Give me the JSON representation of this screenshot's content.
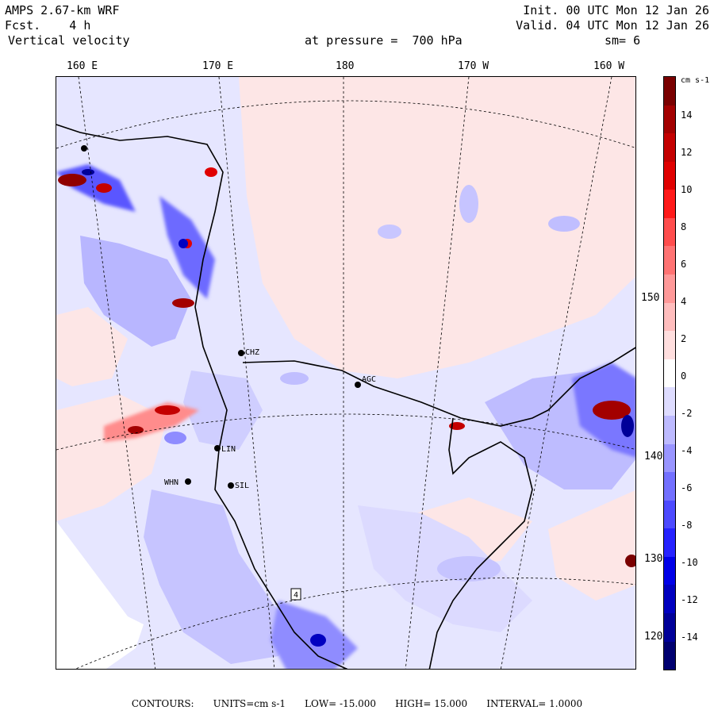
{
  "header": {
    "model": "AMPS 2.67-km WRF",
    "fcst_label": "Fcst.",
    "fcst_value": "4 h",
    "field": "Vertical velocity",
    "pressure_label": "at pressure =",
    "pressure_value": "700 hPa",
    "init": "Init. 00 UTC Mon 12 Jan 26",
    "valid": "Valid. 04 UTC Mon 12 Jan 26",
    "smoothing": "sm= 6"
  },
  "map": {
    "lon_labels": [
      "160 E",
      "170 E",
      "180",
      "170 W",
      "160 W"
    ],
    "lat_labels": [
      "150 W",
      "140 W",
      "130 W",
      "120 W"
    ],
    "stations": [
      "CHZ",
      "AGC",
      "WHN",
      "LIN",
      "SIL"
    ],
    "box_label": "4"
  },
  "colorbar": {
    "units": "cm s-1",
    "ticks": [
      "14",
      "12",
      "10",
      "8",
      "6",
      "4",
      "2",
      "0",
      "-2",
      "-4",
      "-6",
      "-8",
      "-10",
      "-12",
      "-14"
    ],
    "colors": [
      "#7a0000",
      "#a30000",
      "#c40000",
      "#e00000",
      "#ff1a1a",
      "#ff4d4d",
      "#ff7373",
      "#ff9999",
      "#ffbdbd",
      "#ffdede",
      "#ffffff",
      "#dedcff",
      "#bdbaff",
      "#9995ff",
      "#7370ff",
      "#4d4aff",
      "#2622ff",
      "#0000e8",
      "#0000c0",
      "#000099",
      "#000070"
    ]
  },
  "footer": {
    "contours": "CONTOURS:",
    "units": "UNITS=cm s-1",
    "low": "LOW= -15.000",
    "high": "HIGH= 15.000",
    "interval": "INTERVAL= 1.0000"
  }
}
